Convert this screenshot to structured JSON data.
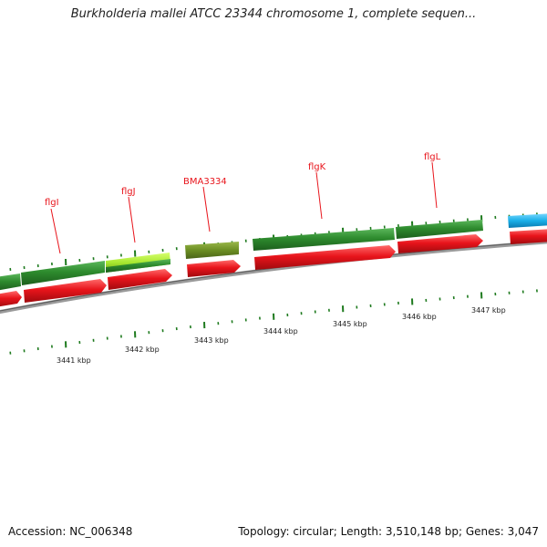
{
  "title": "Burkholderia mallei ATCC 23344 chromosome 1, complete sequen...",
  "footer": {
    "accession": "Accession: NC_006348",
    "summary": "Topology: circular; Length: 3,510,148 bp; Genes: 3,047"
  },
  "gene_labels": [
    {
      "id": "flgI-a",
      "text": "flgI"
    },
    {
      "id": "flgJ",
      "text": "flgJ"
    },
    {
      "id": "BMA3334",
      "text": "BMA3334"
    },
    {
      "id": "flgK",
      "text": "flgK"
    },
    {
      "id": "flgL",
      "text": "flgL"
    }
  ],
  "kbp_labels": [
    "3441 kbp",
    "3442 kbp",
    "3443 kbp",
    "3444 kbp",
    "3445 kbp",
    "3446 kbp",
    "3447 kbp"
  ],
  "colors": {
    "gene_green": "#2e8b2e",
    "gene_lime": "#a8e830",
    "gene_olive": "#6b8e23",
    "gene_cyan": "#1ab0e8",
    "cds_red": "#e8141b",
    "backbone": "#8a8a8a",
    "tick": "#1e7a1e"
  }
}
